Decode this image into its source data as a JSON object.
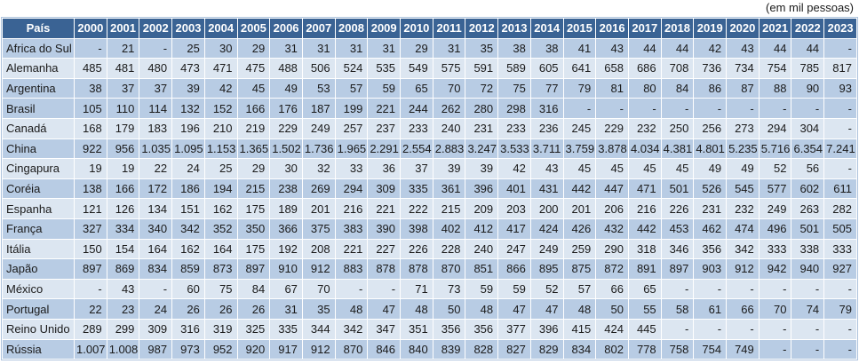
{
  "caption": "(em mil pessoas)",
  "colors": {
    "header_bg": "#3a6394",
    "header_text": "#ffffff",
    "band_dark": "#b8cce4",
    "band_light": "#dce6f1",
    "text": "#1a1a1a"
  },
  "table": {
    "header_col": "País",
    "years": [
      "2000",
      "2001",
      "2002",
      "2003",
      "2004",
      "2005",
      "2006",
      "2007",
      "2008",
      "2009",
      "2010",
      "2011",
      "2012",
      "2013",
      "2014",
      "2015",
      "2016",
      "2017",
      "2018",
      "2019",
      "2020",
      "2021",
      "2022",
      "2023"
    ],
    "rows": [
      {
        "country": "Africa do Sul",
        "values": [
          "-",
          "21",
          "-",
          "25",
          "30",
          "29",
          "31",
          "31",
          "31",
          "31",
          "29",
          "31",
          "35",
          "38",
          "38",
          "41",
          "43",
          "44",
          "44",
          "42",
          "43",
          "44",
          "44",
          "-"
        ]
      },
      {
        "country": "Alemanha",
        "values": [
          "485",
          "481",
          "480",
          "473",
          "471",
          "475",
          "488",
          "506",
          "524",
          "535",
          "549",
          "575",
          "591",
          "589",
          "605",
          "641",
          "658",
          "686",
          "708",
          "736",
          "734",
          "754",
          "785",
          "817"
        ]
      },
      {
        "country": "Argentina",
        "values": [
          "38",
          "37",
          "37",
          "39",
          "42",
          "45",
          "49",
          "53",
          "57",
          "59",
          "65",
          "70",
          "72",
          "75",
          "77",
          "79",
          "81",
          "80",
          "84",
          "86",
          "87",
          "88",
          "90",
          "93"
        ]
      },
      {
        "country": "Brasil",
        "values": [
          "105",
          "110",
          "114",
          "132",
          "152",
          "166",
          "176",
          "187",
          "199",
          "221",
          "244",
          "262",
          "280",
          "298",
          "316",
          "-",
          "-",
          "-",
          "-",
          "-",
          "-",
          "-",
          "-",
          "-"
        ]
      },
      {
        "country": "Canadá",
        "values": [
          "168",
          "179",
          "183",
          "196",
          "210",
          "219",
          "229",
          "249",
          "257",
          "237",
          "233",
          "240",
          "231",
          "233",
          "236",
          "245",
          "229",
          "232",
          "250",
          "256",
          "273",
          "294",
          "304",
          "-"
        ]
      },
      {
        "country": "China",
        "values": [
          "922",
          "956",
          "1.035",
          "1.095",
          "1.153",
          "1.365",
          "1.502",
          "1.736",
          "1.965",
          "2.291",
          "2.554",
          "2.883",
          "3.247",
          "3.533",
          "3.711",
          "3.759",
          "3.878",
          "4.034",
          "4.381",
          "4.801",
          "5.235",
          "5.716",
          "6.354",
          "7.241"
        ]
      },
      {
        "country": "Cingapura",
        "values": [
          "19",
          "19",
          "22",
          "24",
          "25",
          "29",
          "30",
          "32",
          "33",
          "36",
          "37",
          "39",
          "39",
          "42",
          "43",
          "45",
          "45",
          "45",
          "45",
          "49",
          "49",
          "52",
          "56",
          "-"
        ]
      },
      {
        "country": "Coréia",
        "values": [
          "138",
          "166",
          "172",
          "186",
          "194",
          "215",
          "238",
          "269",
          "294",
          "309",
          "335",
          "361",
          "396",
          "401",
          "431",
          "442",
          "447",
          "471",
          "501",
          "526",
          "545",
          "577",
          "602",
          "611"
        ]
      },
      {
        "country": "Espanha",
        "values": [
          "121",
          "126",
          "134",
          "151",
          "162",
          "175",
          "189",
          "201",
          "216",
          "221",
          "222",
          "215",
          "209",
          "203",
          "200",
          "201",
          "206",
          "216",
          "226",
          "231",
          "232",
          "249",
          "263",
          "282"
        ]
      },
      {
        "country": "França",
        "values": [
          "327",
          "334",
          "340",
          "342",
          "352",
          "350",
          "366",
          "375",
          "383",
          "390",
          "398",
          "402",
          "412",
          "417",
          "424",
          "426",
          "432",
          "442",
          "453",
          "462",
          "474",
          "496",
          "501",
          "505"
        ]
      },
      {
        "country": "Itália",
        "values": [
          "150",
          "154",
          "164",
          "162",
          "164",
          "175",
          "192",
          "208",
          "221",
          "227",
          "226",
          "228",
          "240",
          "247",
          "249",
          "259",
          "290",
          "318",
          "346",
          "356",
          "342",
          "333",
          "338",
          "333"
        ]
      },
      {
        "country": "Japão",
        "values": [
          "897",
          "869",
          "834",
          "859",
          "873",
          "897",
          "910",
          "912",
          "883",
          "878",
          "878",
          "870",
          "851",
          "866",
          "895",
          "875",
          "872",
          "891",
          "897",
          "903",
          "912",
          "942",
          "940",
          "927"
        ]
      },
      {
        "country": "México",
        "values": [
          "-",
          "43",
          "-",
          "60",
          "75",
          "84",
          "67",
          "70",
          "-",
          "-",
          "71",
          "73",
          "59",
          "59",
          "52",
          "57",
          "66",
          "65",
          "-",
          "-",
          "-",
          "-",
          "-",
          "-"
        ]
      },
      {
        "country": "Portugal",
        "values": [
          "22",
          "23",
          "24",
          "26",
          "26",
          "26",
          "31",
          "35",
          "48",
          "47",
          "48",
          "50",
          "48",
          "47",
          "47",
          "48",
          "50",
          "55",
          "58",
          "61",
          "66",
          "70",
          "74",
          "79"
        ]
      },
      {
        "country": "Reino Unido",
        "values": [
          "289",
          "299",
          "309",
          "316",
          "319",
          "325",
          "335",
          "344",
          "342",
          "347",
          "351",
          "356",
          "356",
          "377",
          "396",
          "415",
          "424",
          "445",
          "-",
          "-",
          "-",
          "-",
          "-",
          "-"
        ]
      },
      {
        "country": "Rússia",
        "values": [
          "1.007",
          "1.008",
          "987",
          "973",
          "952",
          "920",
          "917",
          "912",
          "870",
          "846",
          "840",
          "839",
          "828",
          "827",
          "829",
          "834",
          "802",
          "778",
          "758",
          "754",
          "749",
          "-",
          "-",
          "-"
        ]
      }
    ]
  }
}
